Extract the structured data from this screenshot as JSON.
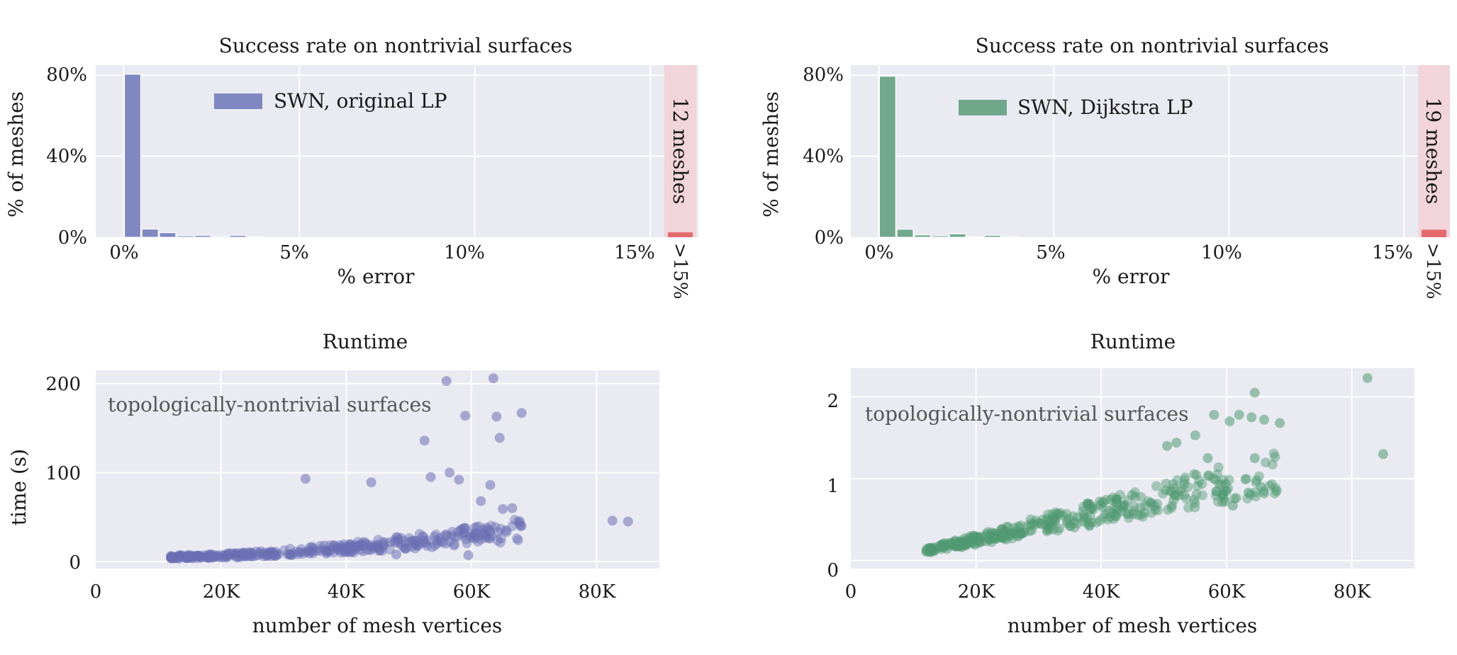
{
  "charts": [
    {
      "title": "Success rate on nontrivial surfaces",
      "xlabel": "% error",
      "ylabel": "% of meshes",
      "x_ticks": [
        "0%",
        "5%",
        "10%",
        "15%"
      ],
      "y_ticks": [
        "0%",
        "40%",
        "80%"
      ],
      "legend": "SWN, original LP",
      "overflow_label": "12 meshes",
      "overflow_tick": ">15%"
    },
    {
      "title": "Success rate on nontrivial surfaces",
      "xlabel": "% error",
      "ylabel": "% of meshes",
      "x_ticks": [
        "0%",
        "5%",
        "10%",
        "15%"
      ],
      "y_ticks": [
        "0%",
        "40%",
        "80%"
      ],
      "legend": "SWN, Dijkstra LP",
      "overflow_label": "19 meshes",
      "overflow_tick": ">15%"
    },
    {
      "title": "Runtime",
      "xlabel": "number of mesh vertices",
      "ylabel": "time (s)",
      "x_ticks": [
        "0",
        "20K",
        "40K",
        "60K",
        "80K"
      ],
      "y_ticks": [
        "0",
        "100",
        "200"
      ],
      "annotation": "topologically-nontrivial surfaces"
    },
    {
      "title": "Runtime",
      "xlabel": "number of mesh vertices",
      "ylabel": "",
      "x_ticks": [
        "0",
        "20K",
        "40K",
        "60K",
        "80K"
      ],
      "y_ticks": [
        "0",
        "1",
        "2"
      ],
      "annotation": "topologically-nontrivial surfaces"
    }
  ],
  "chart_data": [
    {
      "type": "bar",
      "title": "Success rate on nontrivial surfaces",
      "xlabel": "% error",
      "ylabel": "% of meshes",
      "xlim": [
        -0.8,
        15.4
      ],
      "ylim": [
        0,
        85
      ],
      "bin_width": 0.5,
      "bin_starts": [
        0,
        0.5,
        1.0,
        1.5,
        2.0,
        2.5,
        3.0,
        3.5
      ],
      "values": [
        80.5,
        4.0,
        2.2,
        0.7,
        0.9,
        0.4,
        0.9,
        0.2
      ],
      "overflow": {
        "label": ">15%",
        "value": 2.4,
        "count_label": "12 meshes"
      },
      "series": [
        {
          "name": "SWN, original LP",
          "color": "#8088c1"
        }
      ],
      "legend_position": "upper-center",
      "grid": true
    },
    {
      "type": "bar",
      "title": "Success rate on nontrivial surfaces",
      "xlabel": "% error",
      "ylabel": "% of meshes",
      "xlim": [
        -0.8,
        15.4
      ],
      "ylim": [
        0,
        85
      ],
      "bin_width": 0.5,
      "bin_starts": [
        0,
        0.5,
        1.0,
        1.5,
        2.0,
        2.5,
        3.0,
        3.5
      ],
      "values": [
        79.5,
        3.9,
        1.1,
        0.7,
        1.6,
        0.2,
        0.9,
        0.4
      ],
      "overflow": {
        "label": ">15%",
        "value": 3.7,
        "count_label": "19 meshes"
      },
      "series": [
        {
          "name": "SWN, Dijkstra LP",
          "color": "#6fa88b"
        }
      ],
      "legend_position": "upper-center",
      "grid": true
    },
    {
      "type": "scatter",
      "title": "Runtime",
      "xlabel": "number of mesh vertices",
      "ylabel": "time (s)",
      "xlim": [
        0,
        90000
      ],
      "ylim": [
        -8,
        215
      ],
      "color": "#6b6fb4",
      "grid": true,
      "outliers": [
        [
          33500,
          93
        ],
        [
          44000,
          89
        ],
        [
          52500,
          136
        ],
        [
          56000,
          203
        ],
        [
          59000,
          164
        ],
        [
          61500,
          68
        ],
        [
          63500,
          206
        ],
        [
          64000,
          163
        ],
        [
          64500,
          139
        ],
        [
          68000,
          167
        ],
        [
          53500,
          95
        ],
        [
          56500,
          100
        ],
        [
          58000,
          92
        ],
        [
          63000,
          86
        ],
        [
          65000,
          59
        ],
        [
          66500,
          60
        ],
        [
          67500,
          45
        ],
        [
          68000,
          40
        ],
        [
          82500,
          46
        ],
        [
          85000,
          45
        ],
        [
          59500,
          7
        ],
        [
          48000,
          8
        ],
        [
          50500,
          22
        ],
        [
          60500,
          30
        ],
        [
          65500,
          35
        ]
      ],
      "trend": {
        "x_range": [
          12000,
          68000
        ],
        "description": "dense cloud rising from about 5 s at 12K vertices to about 40 s at 65K"
      }
    },
    {
      "type": "scatter",
      "title": "Runtime",
      "xlabel": "number of mesh vertices",
      "ylabel": "",
      "xlim": [
        0,
        90000
      ],
      "ylim": [
        -0.1,
        2.35
      ],
      "color": "#4f9a72",
      "grid": true,
      "outliers": [
        [
          82500,
          2.23
        ],
        [
          85000,
          1.3
        ],
        [
          64500,
          2.05
        ],
        [
          58000,
          1.78
        ],
        [
          62000,
          1.78
        ],
        [
          64000,
          1.75
        ],
        [
          66000,
          1.72
        ],
        [
          68500,
          1.68
        ],
        [
          60500,
          1.7
        ],
        [
          55000,
          1.53
        ],
        [
          50500,
          1.4
        ],
        [
          52000,
          1.44
        ],
        [
          57000,
          1.25
        ],
        [
          64500,
          1.25
        ],
        [
          65500,
          0.9
        ],
        [
          68000,
          0.85
        ],
        [
          63500,
          0.83
        ],
        [
          66000,
          0.82
        ],
        [
          60000,
          0.85
        ],
        [
          61000,
          0.67
        ]
      ],
      "trend": {
        "x_range": [
          12000,
          68000
        ],
        "description": "dense cloud rising from about 0.13 s at 12K vertices to about 1.0 s at 65K"
      }
    }
  ]
}
